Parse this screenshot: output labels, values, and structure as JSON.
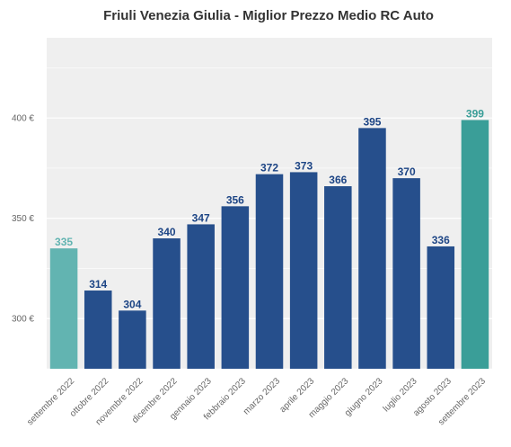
{
  "chart_data": {
    "type": "bar",
    "title": "Friuli Venezia Giulia - Miglior Prezzo Medio RC Auto",
    "xlabel": "",
    "ylabel": "",
    "categories": [
      "settembre 2022",
      "ottobre 2022",
      "novembre 2022",
      "dicembre 2022",
      "gennaio 2023",
      "febbraio 2023",
      "marzo 2023",
      "aprile 2023",
      "maggio 2023",
      "giugno 2023",
      "luglio 2023",
      "agosto 2023",
      "settembre 2023"
    ],
    "values": [
      335,
      314,
      304,
      340,
      347,
      356,
      372,
      373,
      366,
      395,
      370,
      336,
      399
    ],
    "value_labels": [
      "335",
      "314",
      "304",
      "340",
      "347",
      "356",
      "372",
      "373",
      "366",
      "395",
      "370",
      "336",
      "399"
    ],
    "bar_colors": [
      "#62b4b1",
      "#264f8c",
      "#264f8c",
      "#264f8c",
      "#264f8c",
      "#264f8c",
      "#264f8c",
      "#264f8c",
      "#264f8c",
      "#264f8c",
      "#264f8c",
      "#264f8c",
      "#3a9e98"
    ],
    "label_colors": [
      "#62b4b1",
      "#1d4585",
      "#1d4585",
      "#1d4585",
      "#1d4585",
      "#1d4585",
      "#1d4585",
      "#1d4585",
      "#1d4585",
      "#1d4585",
      "#1d4585",
      "#1d4585",
      "#3a9e98"
    ],
    "ylim": [
      275,
      440
    ],
    "yticks": [
      300,
      350,
      400
    ],
    "ytick_labels": [
      "300 €",
      "350 €",
      "400 €"
    ],
    "grid": true,
    "background": "#efefef"
  }
}
